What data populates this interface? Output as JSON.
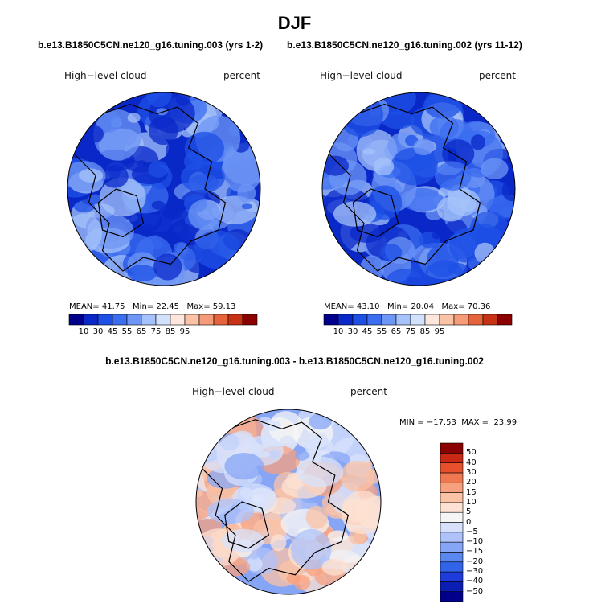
{
  "colors": {
    "abs_scale": [
      "#00008b",
      "#0a28c8",
      "#1e50e6",
      "#3c6ef0",
      "#6e96f5",
      "#a5c3fa",
      "#d2e1fc",
      "#fde6dc",
      "#fbc3a5",
      "#f59b78",
      "#e6643c",
      "#c83214",
      "#8b0000"
    ],
    "diff_scale": [
      "#00008b",
      "#0a1eb4",
      "#1e3cdc",
      "#3264eb",
      "#5a87f0",
      "#87a5f5",
      "#afc3fa",
      "#d7e1fc",
      "#f5f5f5",
      "#fde1d2",
      "#fbc3a5",
      "#f7a07d",
      "#f07850",
      "#e6502d",
      "#c82814",
      "#8b0000"
    ]
  },
  "chart_data": [
    {
      "type": "heatmap",
      "subtype": "polar-stereographic-map",
      "title": "DJF",
      "case_title": "b.e13.B1850C5CN.ne120_g16.tuning.003 (yrs 1-2)",
      "variable": "High−level cloud",
      "units": "percent",
      "stats": {
        "mean_label": "MEAN=",
        "mean": "41.75",
        "min_label": "Min=",
        "min": "22.45",
        "max_label": "Max=",
        "max": "59.13"
      },
      "colorbar_ticks": [
        "10",
        "30",
        "45",
        "55",
        "65",
        "75",
        "85",
        "95"
      ],
      "dominant_range": [
        30,
        55
      ]
    },
    {
      "type": "heatmap",
      "subtype": "polar-stereographic-map",
      "case_title": "b.e13.B1850C5CN.ne120_g16.tuning.002 (yrs 11-12)",
      "variable": "High−level cloud",
      "units": "percent",
      "stats": {
        "mean_label": "MEAN=",
        "mean": "43.10",
        "min_label": "Min=",
        "min": "20.04",
        "max_label": "Max=",
        "max": "70.36"
      },
      "colorbar_ticks": [
        "10",
        "30",
        "45",
        "55",
        "65",
        "75",
        "85",
        "95"
      ],
      "dominant_range": [
        30,
        55
      ]
    },
    {
      "type": "heatmap",
      "subtype": "polar-stereographic-map-difference",
      "title": "b.e13.B1850C5CN.ne120_g16.tuning.003 - b.e13.B1850C5CN.ne120_g16.tuning.002",
      "variable": "High−level cloud",
      "units": "percent",
      "stats": {
        "min_label": "MIN =",
        "min": "−17.53",
        "max_label": "MAX =",
        "max": "23.99"
      },
      "colorbar_ticks": [
        "50",
        "40",
        "30",
        "20",
        "15",
        "10",
        "5",
        "0",
        "−5",
        "−10",
        "−15",
        "−20",
        "−30",
        "−40",
        "−50"
      ],
      "dominant_range": [
        -10,
        10
      ]
    }
  ]
}
